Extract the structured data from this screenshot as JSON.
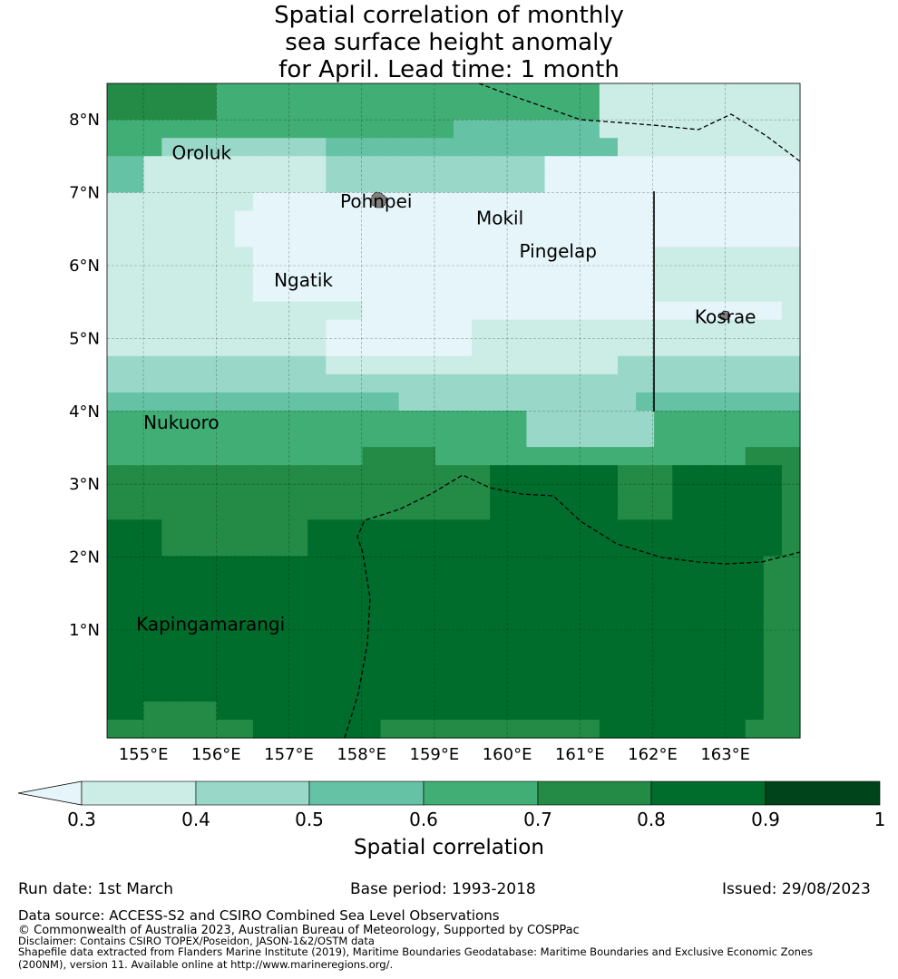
{
  "title": {
    "line1": "Spatial correlation of monthly",
    "line2": "sea surface height anomaly",
    "line3": "for April. Lead time: 1 month"
  },
  "map": {
    "lat_labels": [
      "8°N",
      "7°N",
      "6°N",
      "5°N",
      "4°N",
      "3°N",
      "2°N",
      "1°N"
    ],
    "lon_labels": [
      "155°E",
      "156°E",
      "157°E",
      "158°E",
      "159°E",
      "160°E",
      "161°E",
      "162°E",
      "163°E"
    ],
    "places": [
      {
        "name": "Oroluk",
        "lon": 155.8,
        "lat": 7.55
      },
      {
        "name": "Pohnpei",
        "lon": 158.2,
        "lat": 6.88
      },
      {
        "name": "Mokil",
        "lon": 159.9,
        "lat": 6.65
      },
      {
        "name": "Pingelap",
        "lon": 160.7,
        "lat": 6.2
      },
      {
        "name": "Ngatik",
        "lon": 157.2,
        "lat": 5.8
      },
      {
        "name": "Kosrae",
        "lon": 163.0,
        "lat": 5.3
      },
      {
        "name": "Nukuoro",
        "lon": 155.0,
        "lat": 3.85
      },
      {
        "name": "Kapingamarangi",
        "lon": 154.9,
        "lat": 1.08
      }
    ]
  },
  "colorbar": {
    "ticks": [
      "0.3",
      "0.4",
      "0.5",
      "0.6",
      "0.7",
      "0.8",
      "0.9",
      "1"
    ],
    "colors": [
      "#e5f5f9",
      "#ccece6",
      "#99d8c9",
      "#66c2a4",
      "#41ae76",
      "#238b45",
      "#006d2c",
      "#00441b"
    ],
    "label": "Spatial correlation"
  },
  "info": {
    "run_date": "Run date: 1st March",
    "base_period": "Base period: 1993-2018",
    "issued": "Issued: 29/08/2023"
  },
  "footer": {
    "data_source": "Data source: ACCESS-S2 and CSIRO Combined Sea Level Observations",
    "copyright": "© Commonwealth of Australia 2023, Australian Bureau of Meteorology, Supported by COSPPac",
    "disclaimer": "Disclaimer: Contains CSIRO TOPEX/Poseidon, JASON-1&2/OSTM data",
    "shapefile1": "Shapefile data extracted from Flanders Marine Institute (2019), Maritime Boundaries Geodatabase: Maritime Boundaries and Exclusive Economic Zones",
    "shapefile2": "(200NM), version 11. Available online at http://www.marineregions.org/."
  }
}
